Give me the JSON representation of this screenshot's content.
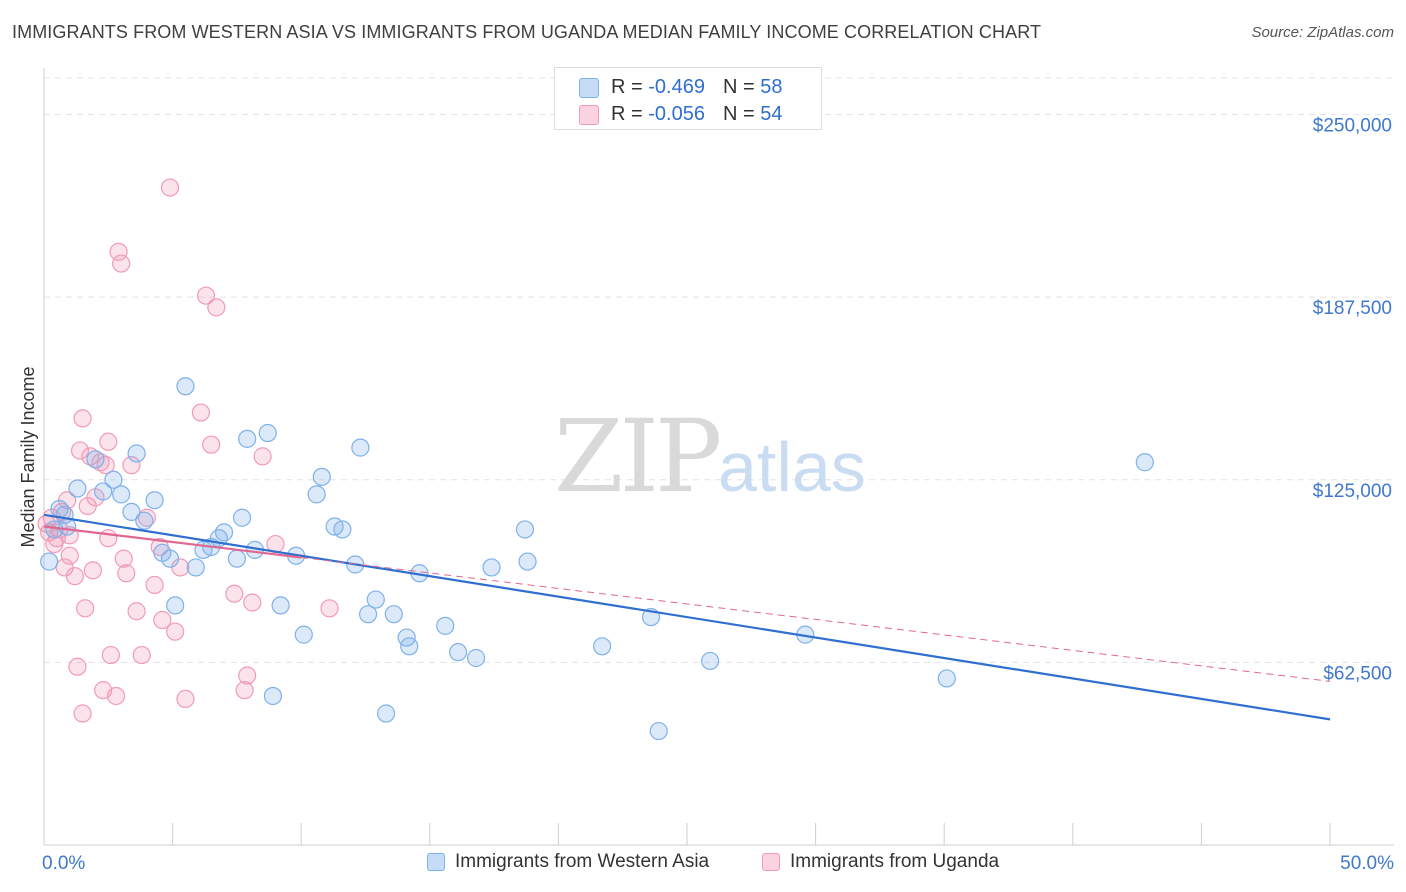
{
  "header": {
    "title": "IMMIGRANTS FROM WESTERN ASIA VS IMMIGRANTS FROM UGANDA MEDIAN FAMILY INCOME CORRELATION CHART",
    "source": "Source: ZipAtlas.com"
  },
  "watermark": {
    "zip": "ZIP",
    "atlas": "atlas"
  },
  "stats": [
    {
      "r_label": "R =",
      "r_value": "-0.469",
      "n_label": "N =",
      "n_value": "58"
    },
    {
      "r_label": "R =",
      "r_value": "-0.056",
      "n_label": "N =",
      "n_value": "54"
    }
  ],
  "colors": {
    "western_asia": "#7fb1ea",
    "uganda": "#f29ab8",
    "blue_line": "#2f6fd0",
    "pink_line": "#e06890",
    "axis_text": "#3f78cc"
  },
  "chart_data": {
    "type": "scatter",
    "title": "IMMIGRANTS FROM WESTERN ASIA VS IMMIGRANTS FROM UGANDA MEDIAN FAMILY INCOME CORRELATION CHART",
    "xlabel": "",
    "ylabel": "Median Family Income",
    "xlim": [
      0,
      50
    ],
    "ylim": [
      0,
      262500
    ],
    "x_tick_labels": [
      "0.0%",
      "50.0%"
    ],
    "y_ticks": [
      62500,
      125000,
      187500,
      250000
    ],
    "y_tick_labels": [
      "$62,500",
      "$125,000",
      "$187,500",
      "$250,000"
    ],
    "grid": true,
    "legend_position": "bottom",
    "series": [
      {
        "name": "Immigrants from Western Asia",
        "r": -0.469,
        "n": 58,
        "trend": {
          "x0": 0,
          "y0": 113000,
          "x1": 50,
          "y1": 43000
        },
        "points": [
          [
            0.2,
            97000
          ],
          [
            0.4,
            108000
          ],
          [
            0.6,
            115000
          ],
          [
            0.8,
            113000
          ],
          [
            0.9,
            109000
          ],
          [
            1.3,
            122000
          ],
          [
            2.0,
            132000
          ],
          [
            2.3,
            121000
          ],
          [
            2.7,
            125000
          ],
          [
            3.0,
            120000
          ],
          [
            3.4,
            114000
          ],
          [
            3.6,
            134000
          ],
          [
            3.9,
            111000
          ],
          [
            4.3,
            118000
          ],
          [
            4.6,
            100000
          ],
          [
            4.9,
            98000
          ],
          [
            5.1,
            82000
          ],
          [
            5.5,
            157000
          ],
          [
            5.9,
            95000
          ],
          [
            6.2,
            101000
          ],
          [
            6.5,
            102000
          ],
          [
            6.8,
            105000
          ],
          [
            7.0,
            107000
          ],
          [
            7.5,
            98000
          ],
          [
            7.7,
            112000
          ],
          [
            7.9,
            139000
          ],
          [
            8.2,
            101000
          ],
          [
            8.7,
            141000
          ],
          [
            8.9,
            51000
          ],
          [
            9.2,
            82000
          ],
          [
            9.8,
            99000
          ],
          [
            10.1,
            72000
          ],
          [
            10.6,
            120000
          ],
          [
            10.8,
            126000
          ],
          [
            11.3,
            109000
          ],
          [
            11.6,
            108000
          ],
          [
            12.1,
            96000
          ],
          [
            12.3,
            136000
          ],
          [
            12.6,
            79000
          ],
          [
            12.9,
            84000
          ],
          [
            13.3,
            45000
          ],
          [
            13.6,
            79000
          ],
          [
            14.1,
            71000
          ],
          [
            14.2,
            68000
          ],
          [
            14.6,
            93000
          ],
          [
            15.6,
            75000
          ],
          [
            16.1,
            66000
          ],
          [
            16.8,
            64000
          ],
          [
            17.4,
            95000
          ],
          [
            18.7,
            108000
          ],
          [
            18.8,
            97000
          ],
          [
            21.7,
            68000
          ],
          [
            23.6,
            78000
          ],
          [
            23.9,
            39000
          ],
          [
            25.9,
            63000
          ],
          [
            29.6,
            72000
          ],
          [
            35.1,
            57000
          ],
          [
            42.8,
            131000
          ]
        ]
      },
      {
        "name": "Immigrants from Uganda",
        "r": -0.056,
        "n": 54,
        "trend": {
          "x0": 0,
          "y0": 109000,
          "x1": 50,
          "y1": 56000
        },
        "points": [
          [
            0.1,
            110000
          ],
          [
            0.2,
            107000
          ],
          [
            0.3,
            112000
          ],
          [
            0.4,
            103000
          ],
          [
            0.5,
            105000
          ],
          [
            0.6,
            108000
          ],
          [
            0.7,
            114000
          ],
          [
            0.8,
            95000
          ],
          [
            0.9,
            118000
          ],
          [
            1.0,
            99000
          ],
          [
            1.0,
            106000
          ],
          [
            1.2,
            92000
          ],
          [
            1.3,
            61000
          ],
          [
            1.4,
            135000
          ],
          [
            1.5,
            45000
          ],
          [
            1.5,
            146000
          ],
          [
            1.6,
            81000
          ],
          [
            1.7,
            116000
          ],
          [
            1.8,
            133000
          ],
          [
            1.9,
            94000
          ],
          [
            2.0,
            119000
          ],
          [
            2.2,
            131000
          ],
          [
            2.3,
            53000
          ],
          [
            2.4,
            130000
          ],
          [
            2.5,
            138000
          ],
          [
            2.5,
            105000
          ],
          [
            2.6,
            65000
          ],
          [
            2.8,
            51000
          ],
          [
            2.9,
            203000
          ],
          [
            3.0,
            199000
          ],
          [
            3.1,
            98000
          ],
          [
            3.2,
            93000
          ],
          [
            3.4,
            130000
          ],
          [
            3.6,
            80000
          ],
          [
            3.8,
            65000
          ],
          [
            4.0,
            112000
          ],
          [
            4.3,
            89000
          ],
          [
            4.5,
            102000
          ],
          [
            4.6,
            77000
          ],
          [
            4.9,
            225000
          ],
          [
            5.1,
            73000
          ],
          [
            5.3,
            95000
          ],
          [
            5.5,
            50000
          ],
          [
            6.1,
            148000
          ],
          [
            6.3,
            188000
          ],
          [
            6.5,
            137000
          ],
          [
            6.7,
            184000
          ],
          [
            7.4,
            86000
          ],
          [
            7.8,
            53000
          ],
          [
            7.9,
            58000
          ],
          [
            8.1,
            83000
          ],
          [
            8.5,
            133000
          ],
          [
            9.0,
            103000
          ],
          [
            11.1,
            81000
          ]
        ]
      }
    ]
  }
}
